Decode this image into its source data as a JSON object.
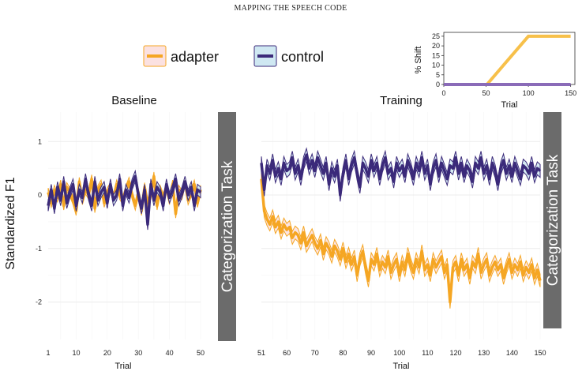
{
  "header": {
    "running_head": "MAPPING THE SPEECH CODE"
  },
  "colors": {
    "adapter": "#f5a623",
    "adapter_fill": "#fbe1e1",
    "control": "#3b2a7a",
    "control_fill": "#cfe8f2",
    "cat_box": "#6b6b6b",
    "inset_adapter": "#f7c04a",
    "inset_control": "#8a6bb8"
  },
  "legend": {
    "adapter_label": "adapter",
    "control_label": "control"
  },
  "category_blocks": {
    "left_label": "Categorization Task",
    "right_label": "Categorization Task"
  },
  "chart_data": [
    {
      "type": "line",
      "panel": "Baseline",
      "title": "Baseline",
      "xlabel": "Trial",
      "ylabel": "Standardized F1",
      "xlim": [
        1,
        50
      ],
      "ylim": [
        -2.7,
        1.55
      ],
      "xticks": [
        1,
        10,
        20,
        30,
        40,
        50
      ],
      "yticks": [
        1,
        0,
        -1,
        -2
      ],
      "ytick_labels": [
        "1",
        "0",
        "-1",
        "-2"
      ],
      "series": [
        {
          "name": "adapter",
          "x": [
            1,
            2,
            3,
            4,
            5,
            6,
            7,
            8,
            9,
            10,
            11,
            12,
            13,
            14,
            15,
            16,
            17,
            18,
            19,
            20,
            21,
            22,
            23,
            24,
            25,
            26,
            27,
            28,
            29,
            30,
            31,
            32,
            33,
            34,
            35,
            36,
            37,
            38,
            39,
            40,
            41,
            42,
            43,
            44,
            45,
            46,
            47,
            48,
            49,
            50
          ],
          "values": [
            0.05,
            -0.15,
            0.1,
            -0.05,
            0.2,
            -0.2,
            0.15,
            0.05,
            -0.1,
            -0.3,
            0.25,
            -0.1,
            0.1,
            0.0,
            0.3,
            -0.25,
            0.1,
            0.2,
            -0.15,
            0.05,
            0.15,
            -0.05,
            0.2,
            0.0,
            -0.1,
            0.1,
            0.25,
            0.0,
            -0.2,
            0.05,
            -0.3,
            0.15,
            -0.15,
            0.0,
            0.35,
            -0.2,
            0.1,
            -0.05,
            0.15,
            -0.1,
            0.2,
            -0.35,
            0.1,
            0.0,
            0.25,
            -0.1,
            0.05,
            0.2,
            -0.15,
            0.1
          ],
          "se": 0.08
        },
        {
          "name": "control",
          "x": [
            1,
            2,
            3,
            4,
            5,
            6,
            7,
            8,
            9,
            10,
            11,
            12,
            13,
            14,
            15,
            16,
            17,
            18,
            19,
            20,
            21,
            22,
            23,
            24,
            25,
            26,
            27,
            28,
            29,
            30,
            31,
            32,
            33,
            34,
            35,
            36,
            37,
            38,
            39,
            40,
            41,
            42,
            43,
            44,
            45,
            46,
            47,
            48,
            49,
            50
          ],
          "values": [
            -0.2,
            0.1,
            -0.25,
            0.15,
            -0.1,
            0.25,
            -0.15,
            0.05,
            0.2,
            -0.2,
            0.1,
            -0.05,
            0.3,
            0.0,
            -0.2,
            0.25,
            -0.1,
            0.05,
            0.15,
            -0.15,
            0.2,
            -0.1,
            0.0,
            0.3,
            -0.2,
            0.1,
            -0.05,
            0.2,
            0.35,
            0.0,
            -0.25,
            0.1,
            -0.55,
            0.2,
            -0.1,
            0.15,
            0.05,
            -0.2,
            0.2,
            -0.05,
            0.1,
            0.3,
            -0.1,
            0.05,
            0.25,
            0.0,
            0.15,
            -0.2,
            0.1,
            0.05
          ],
          "se": 0.1
        }
      ]
    },
    {
      "type": "line",
      "panel": "Training",
      "title": "Training",
      "xlabel": "Trial",
      "xlim": [
        51,
        150
      ],
      "ylim": [
        -2.7,
        1.55
      ],
      "xticks": [
        51,
        60,
        70,
        80,
        90,
        100,
        110,
        120,
        130,
        140,
        150
      ],
      "series": [
        {
          "name": "adapter",
          "x": [
            51,
            52,
            53,
            54,
            55,
            56,
            57,
            58,
            59,
            60,
            61,
            62,
            63,
            64,
            65,
            66,
            67,
            68,
            69,
            70,
            71,
            72,
            73,
            74,
            75,
            76,
            77,
            78,
            79,
            80,
            81,
            82,
            83,
            84,
            85,
            86,
            87,
            88,
            89,
            90,
            91,
            92,
            93,
            94,
            95,
            96,
            97,
            98,
            99,
            100,
            101,
            102,
            103,
            104,
            105,
            106,
            107,
            108,
            109,
            110,
            111,
            112,
            113,
            114,
            115,
            116,
            117,
            118,
            119,
            120,
            121,
            122,
            123,
            124,
            125,
            126,
            127,
            128,
            129,
            130,
            131,
            132,
            133,
            134,
            135,
            136,
            137,
            138,
            139,
            140,
            141,
            142,
            143,
            144,
            145,
            146,
            147,
            148,
            149,
            150
          ],
          "values": [
            0.3,
            -0.3,
            -0.45,
            -0.55,
            -0.4,
            -0.6,
            -0.5,
            -0.7,
            -0.55,
            -0.65,
            -0.6,
            -0.8,
            -0.7,
            -0.75,
            -0.9,
            -0.7,
            -0.95,
            -0.85,
            -0.75,
            -0.9,
            -1.0,
            -0.85,
            -1.1,
            -0.9,
            -1.0,
            -1.15,
            -0.95,
            -1.05,
            -1.2,
            -1.0,
            -1.25,
            -1.1,
            -1.3,
            -1.15,
            -1.5,
            -1.2,
            -1.05,
            -1.35,
            -1.6,
            -1.2,
            -1.3,
            -1.1,
            -1.4,
            -1.25,
            -1.35,
            -1.15,
            -1.45,
            -1.3,
            -1.2,
            -1.5,
            -1.25,
            -1.4,
            -1.1,
            -1.3,
            -1.45,
            -1.2,
            -1.35,
            -1.05,
            -1.4,
            -1.3,
            -1.5,
            -1.2,
            -1.35,
            -1.25,
            -1.15,
            -1.45,
            -1.3,
            -2.0,
            -1.35,
            -1.25,
            -1.5,
            -1.2,
            -1.4,
            -1.3,
            -1.55,
            -1.25,
            -1.35,
            -1.1,
            -1.45,
            -1.3,
            -1.2,
            -1.5,
            -1.35,
            -1.25,
            -1.4,
            -1.3,
            -1.55,
            -1.35,
            -1.2,
            -1.45,
            -1.3,
            -1.4,
            -1.25,
            -1.5,
            -1.35,
            -1.45,
            -1.3,
            -1.55,
            -1.4,
            -1.6
          ],
          "se": 0.12
        },
        {
          "name": "control",
          "x": [
            51,
            52,
            53,
            54,
            55,
            56,
            57,
            58,
            59,
            60,
            61,
            62,
            63,
            64,
            65,
            66,
            67,
            68,
            69,
            70,
            71,
            72,
            73,
            74,
            75,
            76,
            77,
            78,
            79,
            80,
            81,
            82,
            83,
            84,
            85,
            86,
            87,
            88,
            89,
            90,
            91,
            92,
            93,
            94,
            95,
            96,
            97,
            98,
            99,
            100,
            101,
            102,
            103,
            104,
            105,
            106,
            107,
            108,
            109,
            110,
            111,
            112,
            113,
            114,
            115,
            116,
            117,
            118,
            119,
            120,
            121,
            122,
            123,
            124,
            125,
            126,
            127,
            128,
            129,
            130,
            131,
            132,
            133,
            134,
            135,
            136,
            137,
            138,
            139,
            140,
            141,
            142,
            143,
            144,
            145,
            146,
            147,
            148,
            149,
            150
          ],
          "values": [
            0.6,
            0.1,
            0.55,
            0.4,
            0.65,
            0.35,
            0.5,
            0.3,
            0.6,
            0.45,
            0.5,
            0.7,
            0.4,
            0.55,
            0.3,
            0.6,
            0.75,
            0.5,
            0.65,
            0.45,
            0.7,
            0.55,
            0.4,
            0.6,
            0.2,
            0.5,
            0.35,
            0.55,
            0.0,
            0.4,
            0.65,
            0.3,
            0.55,
            0.7,
            0.4,
            0.15,
            0.6,
            0.5,
            0.35,
            0.65,
            0.45,
            0.6,
            0.3,
            0.55,
            0.7,
            0.4,
            0.5,
            0.25,
            0.6,
            0.45,
            0.55,
            0.35,
            0.65,
            0.5,
            0.3,
            0.6,
            0.45,
            0.7,
            0.4,
            0.55,
            0.2,
            0.5,
            0.65,
            0.35,
            0.6,
            0.45,
            0.3,
            0.55,
            0.5,
            0.7,
            0.4,
            0.6,
            0.35,
            0.55,
            0.45,
            0.25,
            0.6,
            0.5,
            0.7,
            0.4,
            0.55,
            0.3,
            0.6,
            0.45,
            0.2,
            0.5,
            0.65,
            0.4,
            0.55,
            0.35,
            0.6,
            0.45,
            0.3,
            0.55,
            0.5,
            0.4,
            0.6,
            0.35,
            0.5,
            0.45
          ],
          "se": 0.12
        }
      ]
    },
    {
      "type": "line",
      "panel": "inset",
      "xlabel": "Trial",
      "ylabel": "% Shift",
      "xlim": [
        0,
        155
      ],
      "ylim": [
        0,
        27
      ],
      "xticks": [
        0,
        50,
        100,
        150
      ],
      "yticks": [
        0,
        5,
        10,
        15,
        20,
        25
      ],
      "series": [
        {
          "name": "adapter",
          "x": [
            0,
            51,
            100,
            150
          ],
          "values": [
            0,
            0,
            25,
            25
          ]
        },
        {
          "name": "control",
          "x": [
            0,
            150
          ],
          "values": [
            0,
            0
          ]
        }
      ]
    }
  ]
}
